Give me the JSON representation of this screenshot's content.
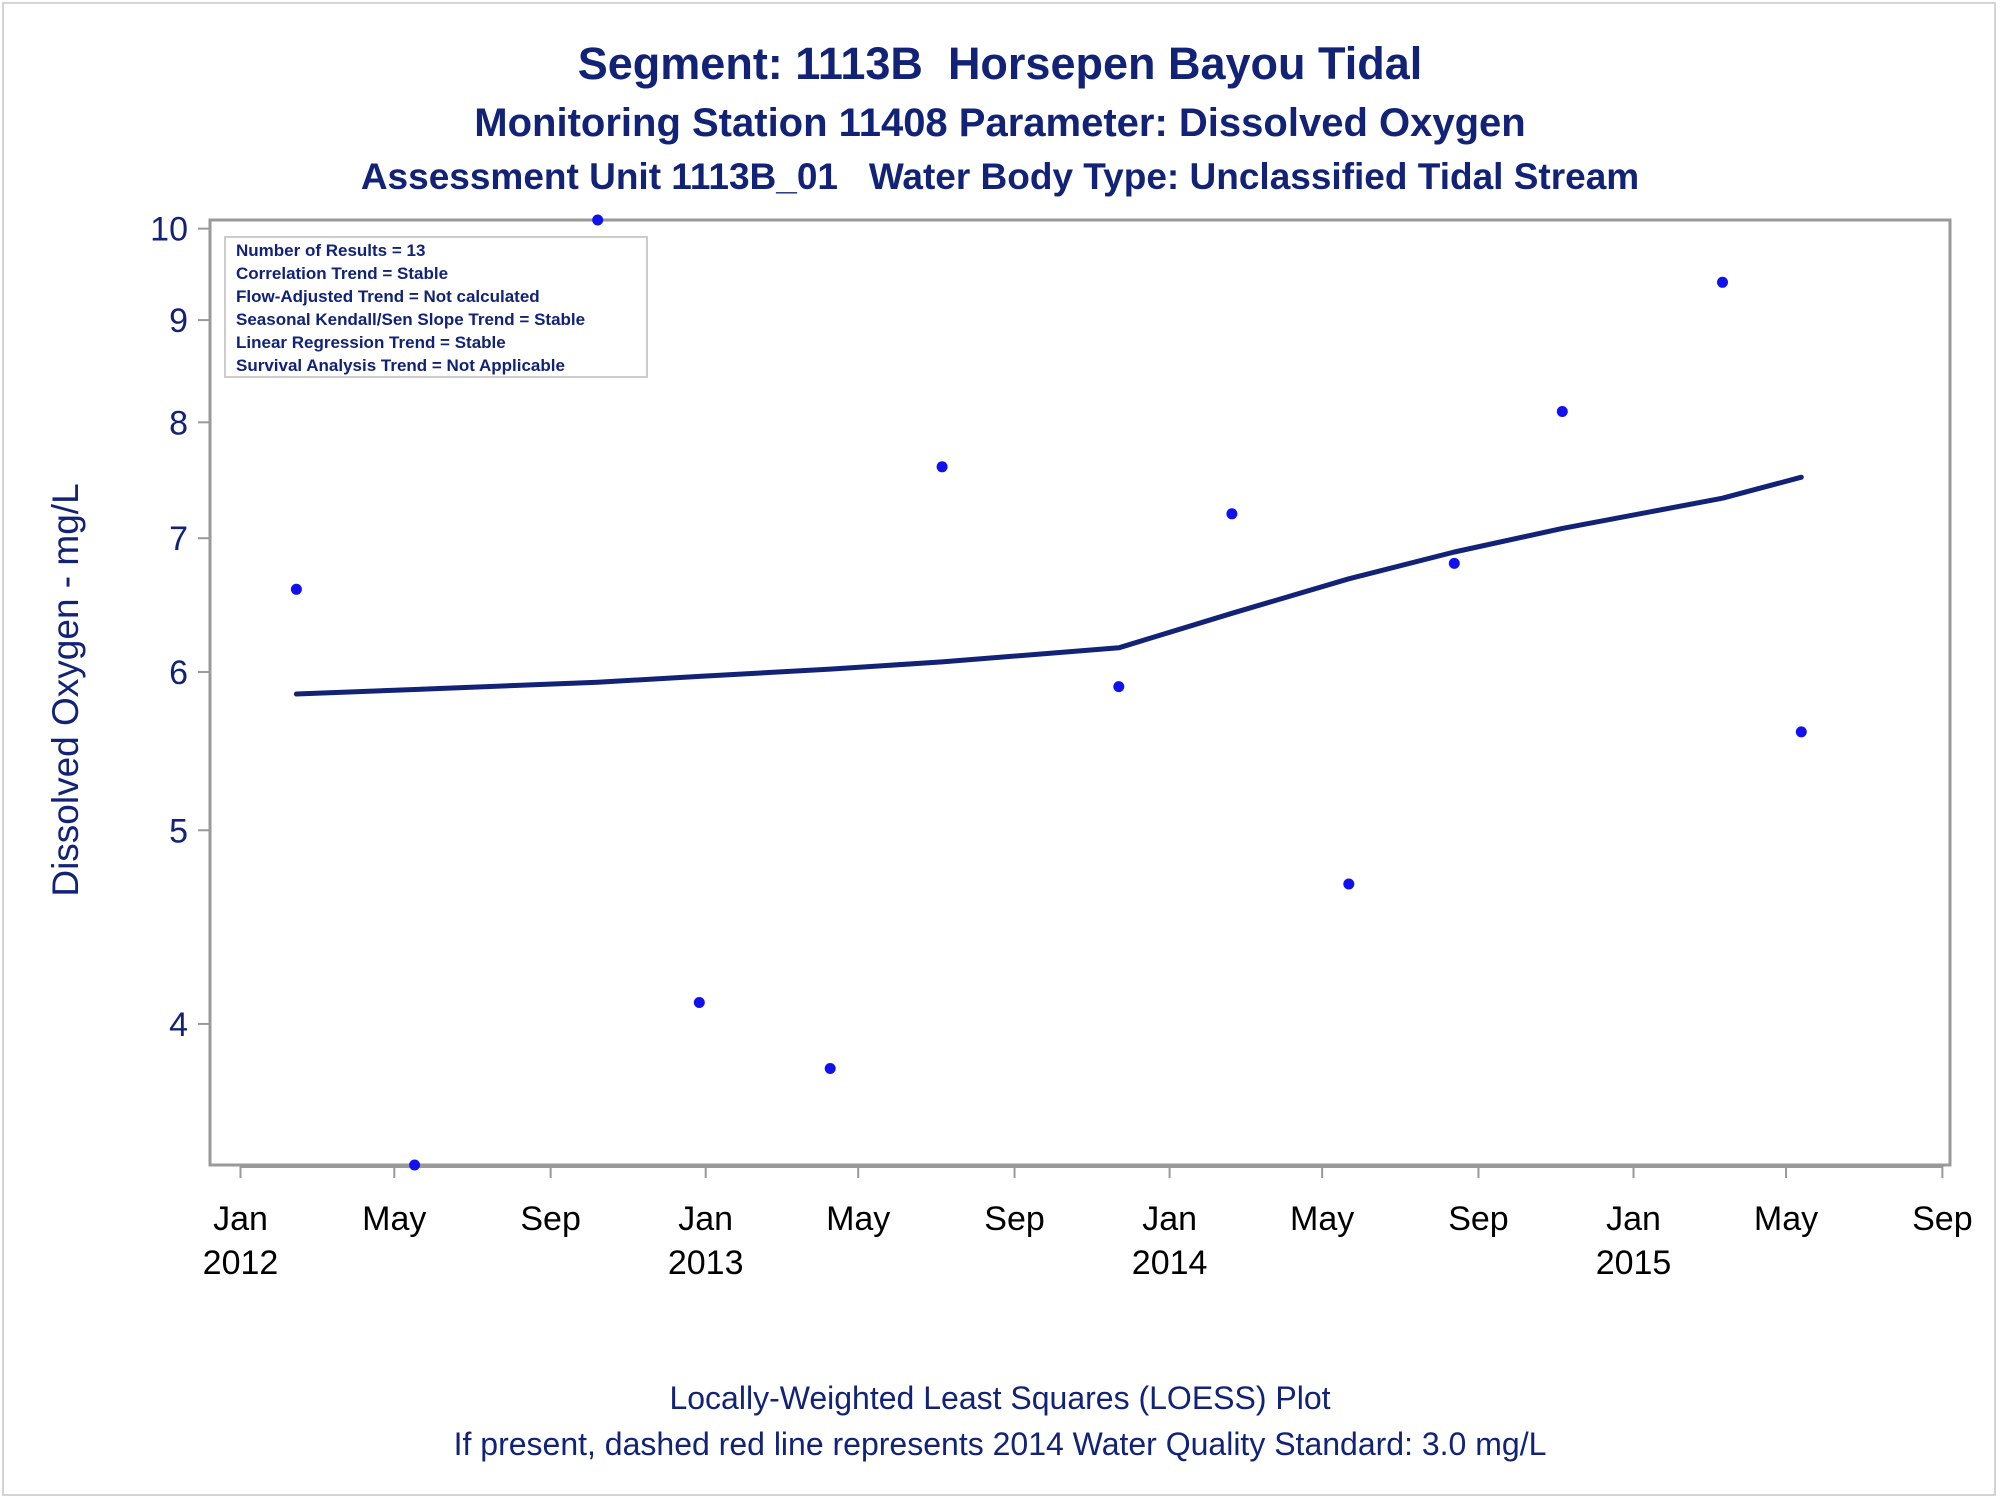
{
  "title": "Segment: 1113B  Horsepen Bayou Tidal",
  "subtitle1": "Monitoring Station 11408 Parameter: Dissolved Oxygen",
  "subtitle2": "Assessment Unit 1113B_01   Water Body Type: Unclassified Tidal Stream",
  "footnote1": "Locally-Weighted Least Squares (LOESS) Plot",
  "footnote2": "If present, dashed red line represents 2014 Water Quality Standard: 3.0 mg/L",
  "annotation": [
    "Number of Results = 13",
    "Correlation Trend = Stable",
    "Flow-Adjusted Trend = Not calculated",
    "Seasonal Kendall/Sen Slope Trend = Stable",
    "Linear Regression Trend = Stable",
    "Survival Analysis Trend = Not Applicable"
  ],
  "colors": {
    "text": "#112277",
    "points": "#1111ee",
    "loess": "#112277",
    "axis": "#999999"
  },
  "chart_data": {
    "type": "scatter",
    "ylabel": "Dissolved Oxygen - mg/L",
    "yscale": "log",
    "ylim": [
      3.4,
      10.1
    ],
    "yticks": [
      "4",
      "5",
      "6",
      "7",
      "8",
      "9",
      "10"
    ],
    "xlim": [
      "2011-12-08",
      "2015-09-07"
    ],
    "xticks": [
      {
        "month": "Jan",
        "year": "2012",
        "date": "2012-01-01"
      },
      {
        "month": "May",
        "year": "",
        "date": "2012-05-01"
      },
      {
        "month": "Sep",
        "year": "",
        "date": "2012-09-01"
      },
      {
        "month": "Jan",
        "year": "2013",
        "date": "2013-01-01"
      },
      {
        "month": "May",
        "year": "",
        "date": "2013-05-01"
      },
      {
        "month": "Sep",
        "year": "",
        "date": "2013-09-01"
      },
      {
        "month": "Jan",
        "year": "2014",
        "date": "2014-01-01"
      },
      {
        "month": "May",
        "year": "",
        "date": "2014-05-01"
      },
      {
        "month": "Sep",
        "year": "",
        "date": "2014-09-01"
      },
      {
        "month": "Jan",
        "year": "2015",
        "date": "2015-01-01"
      },
      {
        "month": "May",
        "year": "",
        "date": "2015-05-01"
      },
      {
        "month": "Sep",
        "year": "",
        "date": "2015-09-01"
      }
    ],
    "series": [
      {
        "type": "scatter",
        "points": [
          {
            "x": "2012-02-14",
            "y": 6.6
          },
          {
            "x": "2012-05-17",
            "y": 3.4
          },
          {
            "x": "2012-10-08",
            "y": 10.1
          },
          {
            "x": "2012-12-27",
            "y": 4.1
          },
          {
            "x": "2013-04-09",
            "y": 3.8
          },
          {
            "x": "2013-07-06",
            "y": 7.6
          },
          {
            "x": "2013-11-22",
            "y": 5.9
          },
          {
            "x": "2014-02-19",
            "y": 7.2
          },
          {
            "x": "2014-05-22",
            "y": 4.7
          },
          {
            "x": "2014-08-13",
            "y": 6.8
          },
          {
            "x": "2014-11-06",
            "y": 8.1
          },
          {
            "x": "2015-03-12",
            "y": 9.4
          },
          {
            "x": "2015-05-13",
            "y": 5.6
          }
        ]
      },
      {
        "type": "line",
        "points": [
          {
            "x": "2012-02-14",
            "y": 5.85
          },
          {
            "x": "2012-05-17",
            "y": 5.88
          },
          {
            "x": "2012-10-08",
            "y": 5.93
          },
          {
            "x": "2012-12-27",
            "y": 5.97
          },
          {
            "x": "2013-04-09",
            "y": 6.02
          },
          {
            "x": "2013-07-06",
            "y": 6.07
          },
          {
            "x": "2013-11-22",
            "y": 6.17
          },
          {
            "x": "2014-02-19",
            "y": 6.42
          },
          {
            "x": "2014-05-22",
            "y": 6.68
          },
          {
            "x": "2014-08-13",
            "y": 6.89
          },
          {
            "x": "2014-11-06",
            "y": 7.08
          },
          {
            "x": "2015-03-12",
            "y": 7.33
          },
          {
            "x": "2015-05-13",
            "y": 7.51
          }
        ]
      }
    ]
  }
}
